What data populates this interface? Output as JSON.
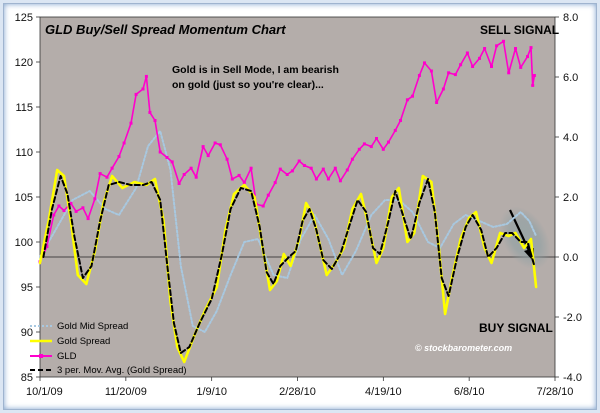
{
  "chart_data": {
    "type": "line",
    "title": "GLD Buy/Sell Spread Momentum Chart",
    "annotations": {
      "sell_signal": "SELL SIGNAL",
      "buy_signal": "BUY SIGNAL",
      "note_line1": "Gold is in Sell Mode, I am bearish",
      "note_line2": "on gold (just so you're clear)...",
      "copyright": "© stockbarometer.com"
    },
    "x_ticks": [
      "10/1/09",
      "11/20/09",
      "1/9/10",
      "2/28/10",
      "4/19/10",
      "6/8/10",
      "7/28/10"
    ],
    "x_range": [
      "2009-10-01",
      "2010-07-28"
    ],
    "y_left": {
      "range": [
        85,
        125
      ],
      "ticks": [
        "125",
        "120",
        "115",
        "110",
        "105",
        "100",
        "95",
        "90",
        "85"
      ]
    },
    "y_right": {
      "range": [
        -4.0,
        8.0
      ],
      "ticks": [
        "8.0",
        "6.0",
        "4.0",
        "2.0",
        "0.0",
        "-2.0",
        "-4.0"
      ]
    },
    "grid": false,
    "legend_position": "bottom-left",
    "background_color": "#b4adaa",
    "series": [
      {
        "name": "Gold Mid Spread",
        "color": "#a8c8e0",
        "style": "dotted",
        "axis": "right",
        "points": [
          [
            "2009-10-01",
            0.0
          ],
          [
            "2009-10-10",
            0.9
          ],
          [
            "2009-10-20",
            1.9
          ],
          [
            "2009-10-30",
            2.2
          ],
          [
            "2009-11-08",
            1.6
          ],
          [
            "2009-11-16",
            1.4
          ],
          [
            "2009-11-26",
            2.3
          ],
          [
            "2009-12-03",
            3.7
          ],
          [
            "2009-12-10",
            4.2
          ],
          [
            "2009-12-16",
            2.9
          ],
          [
            "2009-12-22",
            -0.3
          ],
          [
            "2009-12-29",
            -2.3
          ],
          [
            "2010-01-05",
            -2.5
          ],
          [
            "2010-01-12",
            -1.8
          ],
          [
            "2010-01-20",
            -0.6
          ],
          [
            "2010-01-28",
            0.5
          ],
          [
            "2010-02-05",
            0.6
          ],
          [
            "2010-02-14",
            -0.6
          ],
          [
            "2010-02-22",
            -0.7
          ],
          [
            "2010-03-02",
            0.6
          ],
          [
            "2010-03-10",
            1.4
          ],
          [
            "2010-03-18",
            0.6
          ],
          [
            "2010-03-26",
            -0.6
          ],
          [
            "2010-04-03",
            0.2
          ],
          [
            "2010-04-12",
            1.4
          ],
          [
            "2010-04-20",
            1.9
          ],
          [
            "2010-04-28",
            1.9
          ],
          [
            "2010-05-06",
            1.5
          ],
          [
            "2010-05-15",
            0.5
          ],
          [
            "2010-05-22",
            0.3
          ],
          [
            "2010-05-30",
            1.1
          ],
          [
            "2010-06-06",
            1.4
          ],
          [
            "2010-06-14",
            1.2
          ],
          [
            "2010-06-22",
            1.0
          ],
          [
            "2010-06-30",
            1.1
          ],
          [
            "2010-07-08",
            1.5
          ],
          [
            "2010-07-13",
            1.2
          ],
          [
            "2010-07-17",
            0.7
          ]
        ]
      },
      {
        "name": "Gold  Spread",
        "color": "#ffff00",
        "style": "solid",
        "axis": "right",
        "points": [
          [
            "2009-10-01",
            -0.2
          ],
          [
            "2009-10-06",
            1.2
          ],
          [
            "2009-10-11",
            2.9
          ],
          [
            "2009-10-15",
            2.7
          ],
          [
            "2009-10-19",
            1.2
          ],
          [
            "2009-10-23",
            -0.6
          ],
          [
            "2009-10-28",
            -0.9
          ],
          [
            "2009-11-02",
            0.2
          ],
          [
            "2009-11-07",
            1.8
          ],
          [
            "2009-11-12",
            2.7
          ],
          [
            "2009-11-18",
            2.3
          ],
          [
            "2009-11-25",
            2.5
          ],
          [
            "2009-12-02",
            2.4
          ],
          [
            "2009-12-07",
            2.6
          ],
          [
            "2009-12-12",
            1.2
          ],
          [
            "2009-12-16",
            -1.5
          ],
          [
            "2009-12-20",
            -3.0
          ],
          [
            "2009-12-24",
            -3.5
          ],
          [
            "2009-12-30",
            -2.6
          ],
          [
            "2010-01-05",
            -1.8
          ],
          [
            "2010-01-12",
            -1.0
          ],
          [
            "2010-01-17",
            0.9
          ],
          [
            "2010-01-22",
            2.1
          ],
          [
            "2010-01-28",
            2.4
          ],
          [
            "2010-02-03",
            2.0
          ],
          [
            "2010-02-08",
            0.2
          ],
          [
            "2010-02-12",
            -1.1
          ],
          [
            "2010-02-16",
            -0.8
          ],
          [
            "2010-02-20",
            0.1
          ],
          [
            "2010-02-24",
            -0.3
          ],
          [
            "2010-03-01",
            0.6
          ],
          [
            "2010-03-05",
            1.8
          ],
          [
            "2010-03-09",
            1.4
          ],
          [
            "2010-03-13",
            0.4
          ],
          [
            "2010-03-17",
            -0.6
          ],
          [
            "2010-03-22",
            -0.2
          ],
          [
            "2010-03-27",
            0.3
          ],
          [
            "2010-04-01",
            1.6
          ],
          [
            "2010-04-06",
            2.1
          ],
          [
            "2010-04-11",
            0.9
          ],
          [
            "2010-04-15",
            -0.2
          ],
          [
            "2010-04-19",
            0.3
          ],
          [
            "2010-04-24",
            2.0
          ],
          [
            "2010-04-28",
            2.3
          ],
          [
            "2010-05-03",
            0.5
          ],
          [
            "2010-05-07",
            0.8
          ],
          [
            "2010-05-12",
            2.7
          ],
          [
            "2010-05-17",
            2.5
          ],
          [
            "2010-05-21",
            0.5
          ],
          [
            "2010-05-25",
            -1.9
          ],
          [
            "2010-05-29",
            -0.7
          ],
          [
            "2010-06-03",
            0.6
          ],
          [
            "2010-06-08",
            1.3
          ],
          [
            "2010-06-12",
            1.5
          ],
          [
            "2010-06-17",
            0.3
          ],
          [
            "2010-06-21",
            -0.2
          ],
          [
            "2010-06-26",
            0.8
          ],
          [
            "2010-07-01",
            0.7
          ],
          [
            "2010-07-05",
            0.8
          ],
          [
            "2010-07-10",
            0.3
          ],
          [
            "2010-07-14",
            0.6
          ],
          [
            "2010-07-17",
            -1.0
          ]
        ]
      },
      {
        "name": "GLD",
        "color": "#ff00cc",
        "style": "solid-markers",
        "axis": "left",
        "points": [
          [
            "2009-10-01",
            97.8
          ],
          [
            "2009-10-05",
            99.5
          ],
          [
            "2009-10-09",
            103.0
          ],
          [
            "2009-10-12",
            104.0
          ],
          [
            "2009-10-15",
            103.5
          ],
          [
            "2009-10-19",
            104.3
          ],
          [
            "2009-10-22",
            103.4
          ],
          [
            "2009-10-26",
            103.8
          ],
          [
            "2009-10-29",
            102.6
          ],
          [
            "2009-11-02",
            104.8
          ],
          [
            "2009-11-05",
            107.6
          ],
          [
            "2009-11-09",
            107.2
          ],
          [
            "2009-11-12",
            108.2
          ],
          [
            "2009-11-16",
            109.5
          ],
          [
            "2009-11-19",
            111.0
          ],
          [
            "2009-11-23",
            113.2
          ],
          [
            "2009-11-26",
            116.4
          ],
          [
            "2009-11-30",
            117.0
          ],
          [
            "2009-12-02",
            118.4
          ],
          [
            "2009-12-04",
            114.4
          ],
          [
            "2009-12-07",
            113.5
          ],
          [
            "2009-12-10",
            110.0
          ],
          [
            "2009-12-14",
            109.4
          ],
          [
            "2009-12-17",
            108.9
          ],
          [
            "2009-12-21",
            106.5
          ],
          [
            "2009-12-24",
            107.5
          ],
          [
            "2009-12-28",
            108.2
          ],
          [
            "2009-12-31",
            107.2
          ],
          [
            "2010-01-04",
            110.6
          ],
          [
            "2010-01-07",
            109.6
          ],
          [
            "2010-01-11",
            111.0
          ],
          [
            "2010-01-14",
            110.8
          ],
          [
            "2010-01-18",
            109.2
          ],
          [
            "2010-01-21",
            107.0
          ],
          [
            "2010-01-25",
            107.4
          ],
          [
            "2010-01-28",
            106.6
          ],
          [
            "2010-02-01",
            108.2
          ],
          [
            "2010-02-04",
            104.2
          ],
          [
            "2010-02-08",
            104.0
          ],
          [
            "2010-02-11",
            105.2
          ],
          [
            "2010-02-15",
            106.6
          ],
          [
            "2010-02-18",
            108.1
          ],
          [
            "2010-02-22",
            107.5
          ],
          [
            "2010-02-25",
            107.9
          ],
          [
            "2010-03-01",
            109.0
          ],
          [
            "2010-03-04",
            108.5
          ],
          [
            "2010-03-08",
            108.2
          ],
          [
            "2010-03-11",
            107.0
          ],
          [
            "2010-03-15",
            108.1
          ],
          [
            "2010-03-18",
            107.0
          ],
          [
            "2010-03-22",
            108.2
          ],
          [
            "2010-03-25",
            106.8
          ],
          [
            "2010-03-29",
            108.0
          ],
          [
            "2010-04-01",
            109.2
          ],
          [
            "2010-04-05",
            110.3
          ],
          [
            "2010-04-08",
            110.9
          ],
          [
            "2010-04-12",
            110.6
          ],
          [
            "2010-04-15",
            111.5
          ],
          [
            "2010-04-19",
            110.3
          ],
          [
            "2010-04-22",
            111.1
          ],
          [
            "2010-04-26",
            112.4
          ],
          [
            "2010-04-29",
            113.5
          ],
          [
            "2010-05-03",
            115.8
          ],
          [
            "2010-05-06",
            116.2
          ],
          [
            "2010-05-10",
            118.5
          ],
          [
            "2010-05-13",
            119.9
          ],
          [
            "2010-05-17",
            119.0
          ],
          [
            "2010-05-20",
            115.5
          ],
          [
            "2010-05-24",
            117.0
          ],
          [
            "2010-05-27",
            118.8
          ],
          [
            "2010-05-31",
            118.6
          ],
          [
            "2010-06-03",
            119.7
          ],
          [
            "2010-06-07",
            121.0
          ],
          [
            "2010-06-10",
            119.5
          ],
          [
            "2010-06-14",
            120.4
          ],
          [
            "2010-06-17",
            121.5
          ],
          [
            "2010-06-21",
            119.5
          ],
          [
            "2010-06-24",
            121.8
          ],
          [
            "2010-06-28",
            122.3
          ],
          [
            "2010-07-01",
            118.8
          ],
          [
            "2010-07-05",
            121.5
          ],
          [
            "2010-07-08",
            119.4
          ],
          [
            "2010-07-12",
            120.6
          ],
          [
            "2010-07-14",
            121.6
          ],
          [
            "2010-07-15",
            117.4
          ],
          [
            "2010-07-16",
            118.5
          ]
        ]
      },
      {
        "name": "3 per. Mov. Avg. (Gold  Spread)",
        "color": "#000000",
        "style": "dashed",
        "axis": "right",
        "points": [
          [
            "2009-10-03",
            0.0
          ],
          [
            "2009-10-08",
            1.6
          ],
          [
            "2009-10-13",
            2.7
          ],
          [
            "2009-10-17",
            2.1
          ],
          [
            "2009-10-21",
            0.7
          ],
          [
            "2009-10-26",
            -0.7
          ],
          [
            "2009-10-31",
            -0.3
          ],
          [
            "2009-11-05",
            1.2
          ],
          [
            "2009-11-10",
            2.4
          ],
          [
            "2009-11-16",
            2.5
          ],
          [
            "2009-11-23",
            2.4
          ],
          [
            "2009-11-30",
            2.4
          ],
          [
            "2009-12-05",
            2.5
          ],
          [
            "2009-12-10",
            1.9
          ],
          [
            "2009-12-14",
            -0.2
          ],
          [
            "2009-12-18",
            -2.2
          ],
          [
            "2009-12-22",
            -3.2
          ],
          [
            "2009-12-27",
            -3.0
          ],
          [
            "2010-01-02",
            -2.2
          ],
          [
            "2010-01-09",
            -1.4
          ],
          [
            "2010-01-15",
            0.1
          ],
          [
            "2010-01-20",
            1.6
          ],
          [
            "2010-01-26",
            2.3
          ],
          [
            "2010-02-01",
            2.2
          ],
          [
            "2010-02-06",
            1.0
          ],
          [
            "2010-02-10",
            -0.5
          ],
          [
            "2010-02-14",
            -0.9
          ],
          [
            "2010-02-18",
            -0.3
          ],
          [
            "2010-02-23",
            0.0
          ],
          [
            "2010-02-27",
            0.2
          ],
          [
            "2010-03-03",
            1.2
          ],
          [
            "2010-03-07",
            1.6
          ],
          [
            "2010-03-11",
            0.9
          ],
          [
            "2010-03-15",
            -0.1
          ],
          [
            "2010-03-20",
            -0.4
          ],
          [
            "2010-03-25",
            0.1
          ],
          [
            "2010-03-30",
            1.0
          ],
          [
            "2010-04-04",
            1.9
          ],
          [
            "2010-04-09",
            1.5
          ],
          [
            "2010-04-13",
            0.3
          ],
          [
            "2010-04-17",
            0.1
          ],
          [
            "2010-04-22",
            1.2
          ],
          [
            "2010-04-26",
            2.2
          ],
          [
            "2010-05-01",
            1.3
          ],
          [
            "2010-05-05",
            0.6
          ],
          [
            "2010-05-10",
            1.8
          ],
          [
            "2010-05-15",
            2.6
          ],
          [
            "2010-05-19",
            1.5
          ],
          [
            "2010-05-23",
            -0.7
          ],
          [
            "2010-05-27",
            -1.3
          ],
          [
            "2010-06-01",
            0.0
          ],
          [
            "2010-06-06",
            1.0
          ],
          [
            "2010-06-10",
            1.4
          ],
          [
            "2010-06-15",
            0.9
          ],
          [
            "2010-06-19",
            0.0
          ],
          [
            "2010-06-24",
            0.3
          ],
          [
            "2010-06-29",
            0.8
          ],
          [
            "2010-07-03",
            0.8
          ],
          [
            "2010-07-08",
            0.5
          ],
          [
            "2010-07-12",
            0.5
          ],
          [
            "2010-07-16",
            -0.3
          ]
        ]
      }
    ]
  }
}
